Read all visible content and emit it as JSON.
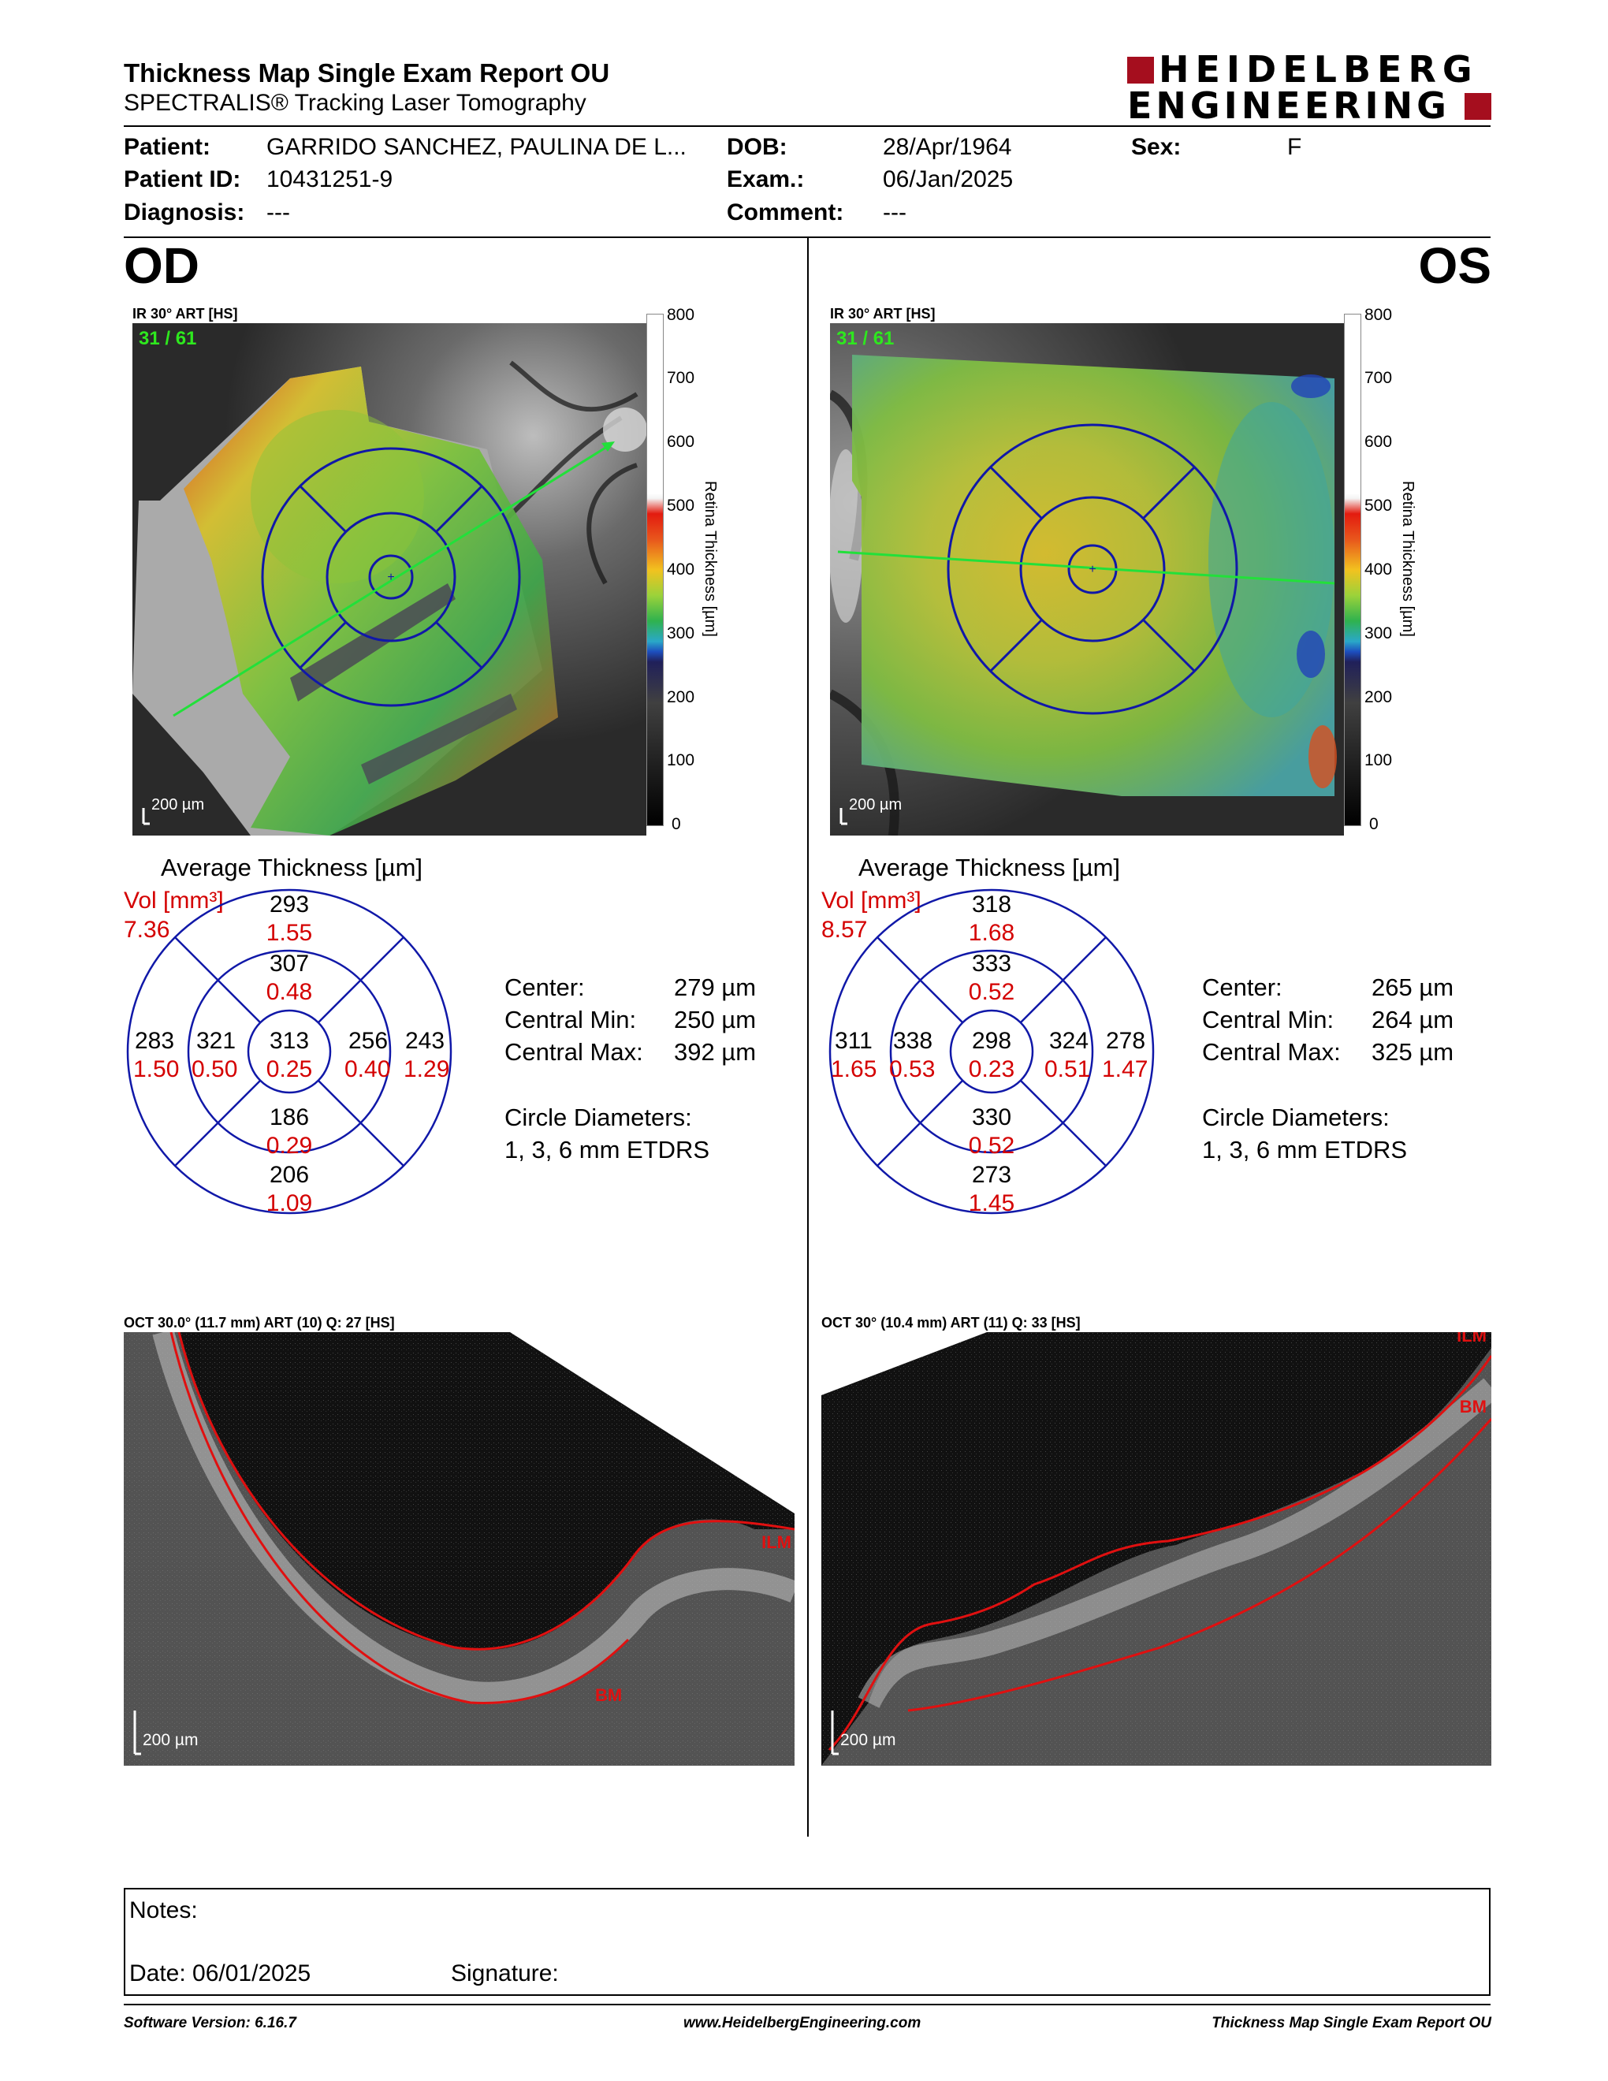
{
  "header": {
    "title": "Thickness Map Single Exam Report OU",
    "subtitle": "SPECTRALIS® Tracking Laser Tomography",
    "logo_line1": "HEIDELBERG",
    "logo_line2": "ENGINEERING",
    "brand_color": "#a50e1e"
  },
  "patient": {
    "patient_label": "Patient:",
    "patient_value": "GARRIDO SANCHEZ, PAULINA DE L...",
    "id_label": "Patient ID:",
    "id_value": "10431251-9",
    "diag_label": "Diagnosis:",
    "diag_value": "---",
    "dob_label": "DOB:",
    "dob_value": "28/Apr/1964",
    "exam_label": "Exam.:",
    "exam_value": "06/Jan/2025",
    "comment_label": "Comment:",
    "comment_value": "---",
    "sex_label": "Sex:",
    "sex_value": "F"
  },
  "od": {
    "eye": "OD",
    "ir_header": "IR 30° ART [HS]",
    "frame": "31 / 61",
    "scale_bar": "200 µm",
    "avg_title": "Average Thickness [µm]",
    "vol_label": "Vol [mm³]",
    "vol_total": "7.36",
    "center_thick": "313",
    "center_vol": "0.25",
    "inner_sup": "307",
    "inner_sup_vol": "0.48",
    "inner_inf": "186",
    "inner_inf_vol": "0.29",
    "inner_left": "321",
    "inner_left_vol": "0.50",
    "inner_right": "256",
    "inner_right_vol": "0.40",
    "outer_sup": "293",
    "outer_sup_vol": "1.55",
    "outer_inf": "206",
    "outer_inf_vol": "1.09",
    "outer_left": "283",
    "outer_left_vol": "1.50",
    "outer_right": "243",
    "outer_right_vol": "1.29",
    "center_label": "Center:",
    "center_value": "279 µm",
    "cmin_label": "Central Min:",
    "cmin_value": "250 µm",
    "cmax_label": "Central Max:",
    "cmax_value": "392 µm",
    "circ_label": "Circle Diameters:",
    "circ_value": "1, 3, 6 mm ETDRS",
    "oct_header": "OCT 30.0° (11.7 mm) ART (10) Q: 27 [HS]",
    "ilm": "ILM",
    "bm": "BM"
  },
  "os": {
    "eye": "OS",
    "ir_header": "IR 30° ART [HS]",
    "frame": "31 / 61",
    "scale_bar": "200 µm",
    "avg_title": "Average Thickness [µm]",
    "vol_label": "Vol [mm³]",
    "vol_total": "8.57",
    "center_thick": "298",
    "center_vol": "0.23",
    "inner_sup": "333",
    "inner_sup_vol": "0.52",
    "inner_inf": "330",
    "inner_inf_vol": "0.52",
    "inner_left": "338",
    "inner_left_vol": "0.53",
    "inner_right": "324",
    "inner_right_vol": "0.51",
    "outer_sup": "318",
    "outer_sup_vol": "1.68",
    "outer_inf": "273",
    "outer_inf_vol": "1.45",
    "outer_left": "311",
    "outer_left_vol": "1.65",
    "outer_right": "278",
    "outer_right_vol": "1.47",
    "center_label": "Center:",
    "center_value": "265 µm",
    "cmin_label": "Central Min:",
    "cmin_value": "264 µm",
    "cmax_label": "Central Max:",
    "cmax_value": "325 µm",
    "circ_label": "Circle Diameters:",
    "circ_value": "1, 3, 6 mm ETDRS",
    "oct_header": "OCT 30° (10.4 mm) ART (11) Q: 33 [HS]",
    "ilm": "ILM",
    "bm": "BM"
  },
  "scale": {
    "ticks": [
      "800",
      "700",
      "600",
      "500",
      "400",
      "300",
      "200",
      "100",
      "0"
    ],
    "label": "Retina Thickness [µm]"
  },
  "notes": {
    "notes_label": "Notes:",
    "date_label": "Date: 06/01/2025",
    "signature_label": "Signature:"
  },
  "footer": {
    "software": "Software Version: 6.16.7",
    "website": "www.HeidelbergEngineering.com",
    "report": "Thickness Map Single Exam Report OU"
  }
}
